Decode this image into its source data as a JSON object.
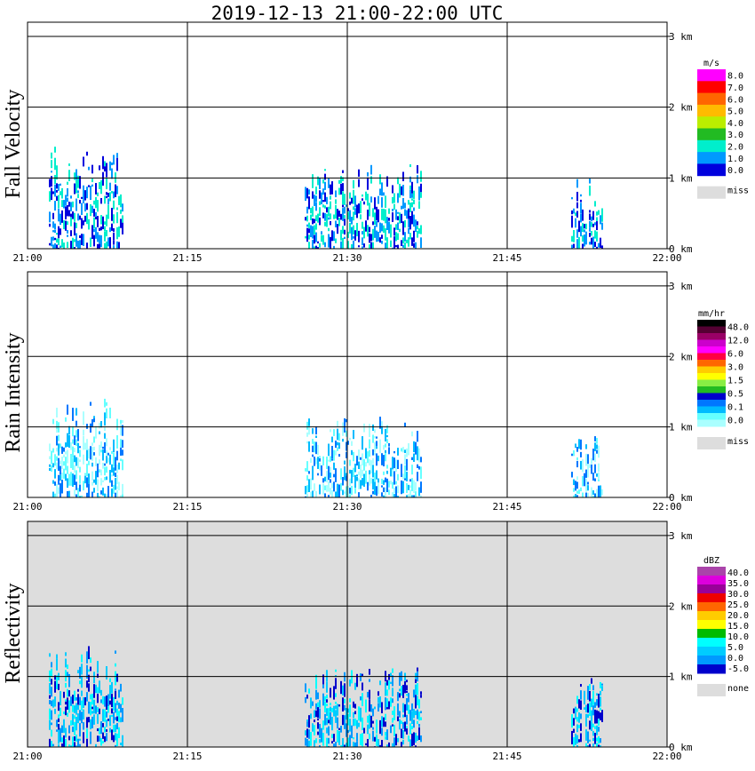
{
  "title": "2019-12-13   21:00-22:00 UTC",
  "x_ticks": [
    "21:00",
    "21:15",
    "21:30",
    "21:45",
    "22:00"
  ],
  "y_ticks": [
    "0 km",
    "1 km",
    "2 km",
    "3 km"
  ],
  "chart_data": [
    {
      "type": "heatmap",
      "title": "Fall Velocity",
      "xlim": [
        "21:00",
        "22:00"
      ],
      "ylim": [
        0,
        3.2
      ],
      "y_unit": "km",
      "grid": true,
      "background": "#ffffff",
      "colorbar": {
        "unit": "m/s",
        "labels": [
          "8.0",
          "7.0",
          "6.0",
          "5.0",
          "4.0",
          "3.0",
          "2.0",
          "1.0",
          "0.0"
        ],
        "colors": [
          "#ff00ff",
          "#ff0000",
          "#ff6600",
          "#ffbb00",
          "#bbee00",
          "#22bb22",
          "#00eecc",
          "#0099ff",
          "#0000dd"
        ],
        "missing_label": "miss"
      },
      "echo_regions": [
        {
          "start": "21:02",
          "end": "21:09",
          "top_km": 1.45,
          "dominant": "1.0-3.0"
        },
        {
          "start": "21:26",
          "end": "21:37",
          "top_km": 1.2,
          "dominant": "0.0-3.0"
        },
        {
          "start": "21:51",
          "end": "21:54",
          "top_km": 1.0,
          "dominant": "1.0-3.0"
        }
      ]
    },
    {
      "type": "heatmap",
      "title": "Rain Intensity",
      "xlim": [
        "21:00",
        "22:00"
      ],
      "ylim": [
        0,
        3.2
      ],
      "y_unit": "km",
      "grid": true,
      "background": "#ffffff",
      "colorbar": {
        "unit": "mm/hr",
        "labels": [
          "48.0",
          "12.0",
          "6.0",
          "3.0",
          "1.5",
          "0.5",
          "0.1",
          "0.0"
        ],
        "colors": [
          "#000000",
          "#550033",
          "#990066",
          "#cc00cc",
          "#ff00ff",
          "#ff0044",
          "#ff6600",
          "#ffcc00",
          "#ffff00",
          "#88ee44",
          "#22bb22",
          "#0000cc",
          "#0077ff",
          "#00bbff",
          "#66ffff",
          "#aaffff"
        ],
        "missing_label": "miss"
      },
      "echo_regions": [
        {
          "start": "21:02",
          "end": "21:09",
          "top_km": 1.4,
          "dominant": "0.1-0.5"
        },
        {
          "start": "21:26",
          "end": "21:37",
          "top_km": 1.15,
          "dominant": "0.0-0.1"
        },
        {
          "start": "21:51",
          "end": "21:54",
          "top_km": 0.95,
          "dominant": "0.0-0.1"
        }
      ]
    },
    {
      "type": "heatmap",
      "title": "Reflectivity",
      "xlim": [
        "21:00",
        "22:00"
      ],
      "ylim": [
        0,
        3.2
      ],
      "y_unit": "km",
      "grid": true,
      "background": "#dddddd",
      "colorbar": {
        "unit": "dBZ",
        "labels": [
          "40.0",
          "35.0",
          "30.0",
          "25.0",
          "20.0",
          "15.0",
          "10.0",
          "5.0",
          "0.0",
          "-5.0"
        ],
        "colors": [
          "#aa44aa",
          "#dd00dd",
          "#990099",
          "#ee0000",
          "#ff6600",
          "#ffcc00",
          "#ffff00",
          "#00bb00",
          "#00ffff",
          "#00ccff",
          "#0099ff",
          "#0000cc"
        ],
        "missing_label": "none"
      },
      "echo_regions": [
        {
          "start": "21:02",
          "end": "21:09",
          "top_km": 1.45,
          "dominant": "0.0-15.0"
        },
        {
          "start": "21:26",
          "end": "21:37",
          "top_km": 1.2,
          "dominant": "-5.0-10.0"
        },
        {
          "start": "21:51",
          "end": "21:54",
          "top_km": 1.0,
          "dominant": "0.0-5.0"
        }
      ]
    }
  ]
}
